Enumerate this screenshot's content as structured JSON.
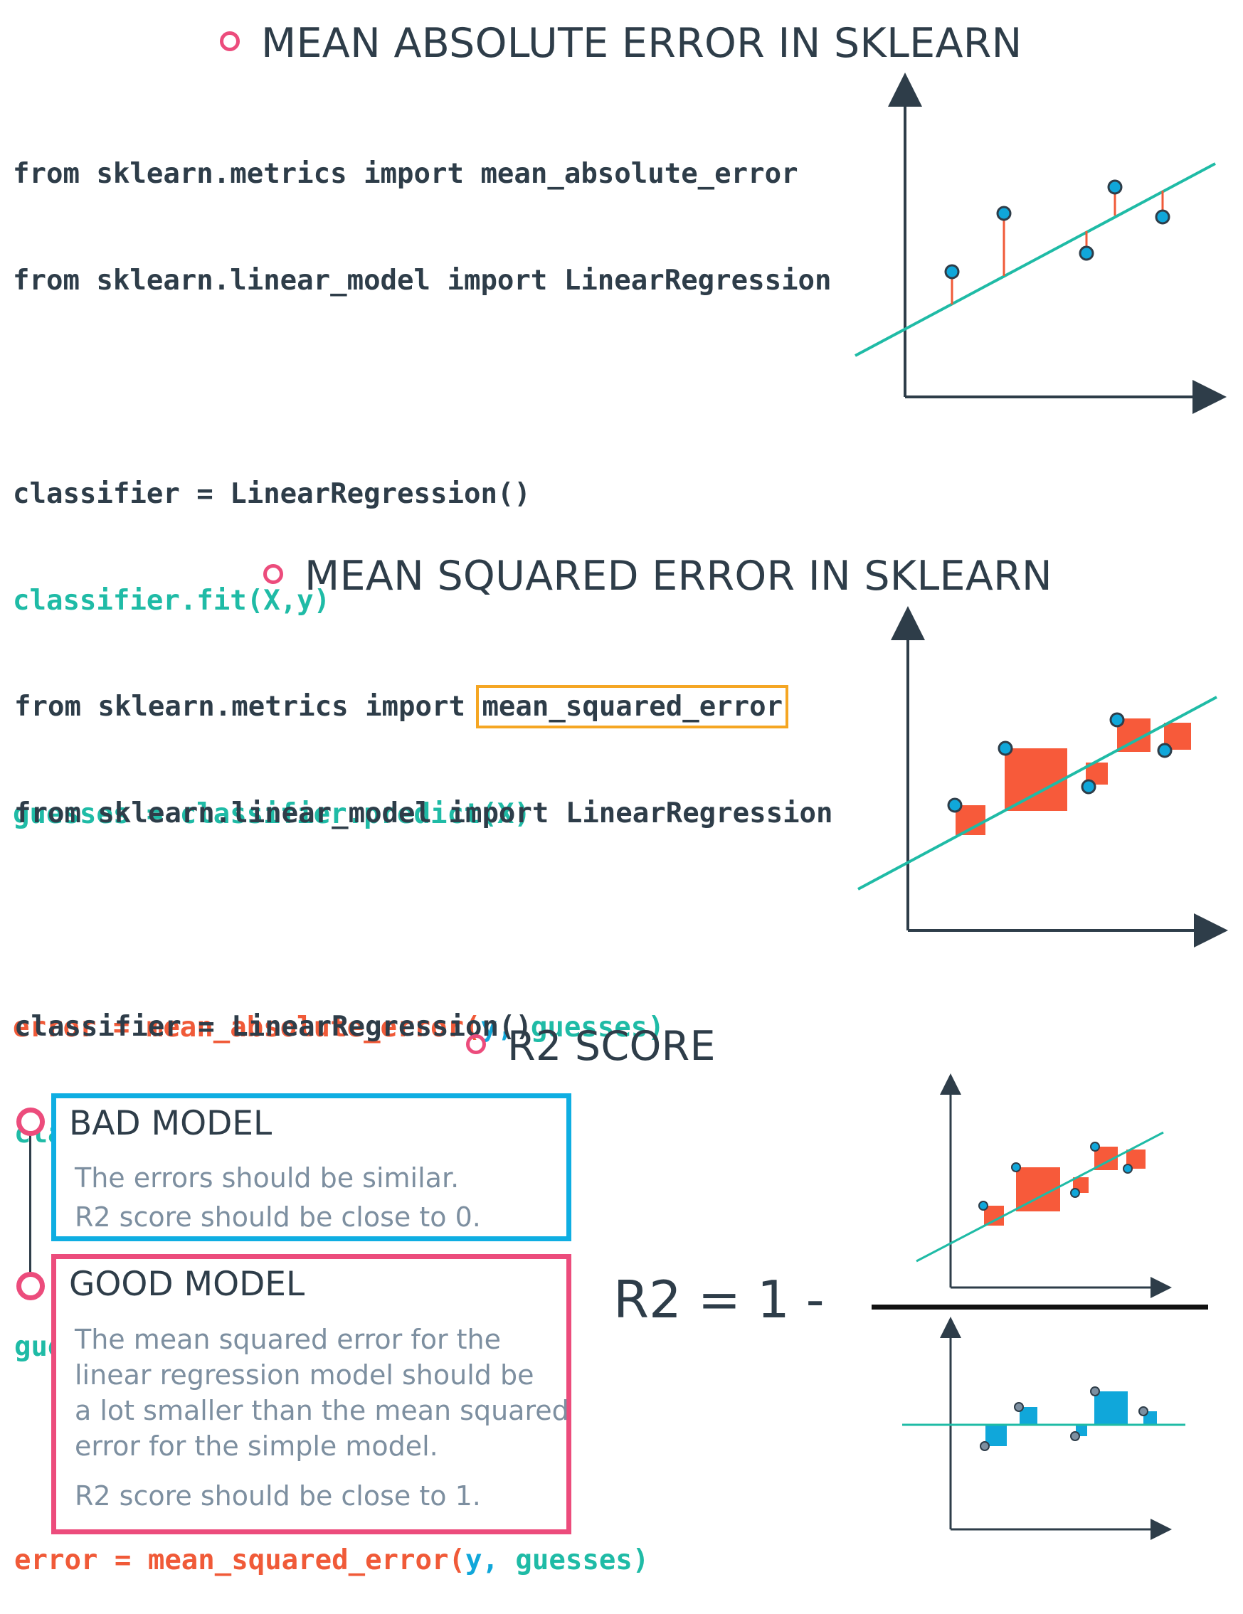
{
  "sections": {
    "mae": {
      "title": "MEAN ABSOLUTE ERROR IN SKLEARN",
      "code": {
        "l1": "from sklearn.metrics import mean_absolute_error",
        "l2": "from sklearn.linear_model import LinearRegression",
        "l3": "classifier = LinearRegression()",
        "l4": "classifier.fit(X,y)",
        "l5": "guesses = classifier.predict(X)",
        "l6a": "error = mean_absolute_error(",
        "l6b": "y,",
        "l6c": " guesses)"
      }
    },
    "mse": {
      "title": "MEAN SQUARED ERROR IN SKLEARN",
      "code": {
        "l1a": "from sklearn.metrics import ",
        "l1b": "mean_squared_error",
        "l2": "from sklearn.linear_model import LinearRegression",
        "l3": "classifier = LinearRegression()",
        "l4": "classifier.fit(X,y)",
        "l5": "guesses = classifier.predict(X)",
        "l6a": "error = mean_squared_error(",
        "l6b": "y,",
        "l6c": " guesses)"
      }
    },
    "r2": {
      "title": "R2 SCORE",
      "bad": {
        "title": "BAD MODEL",
        "line1": "The errors should be similar.",
        "line2": "R2 score should be close to 0."
      },
      "good": {
        "title": "GOOD MODEL",
        "line1": "The mean squared error for the",
        "line2": "linear regression model should be",
        "line3": "a lot smaller than the mean squared",
        "line4": "error for the simple model.",
        "line5": "R2 score should be close to 1."
      },
      "formula": "R2 = 1 -"
    }
  },
  "colors": {
    "dark": "#2e3d49",
    "teal": "#1fbba6",
    "blue": "#10a7da",
    "red": "#f05a38",
    "pink": "#ec4c7c",
    "orange": "#f5a623"
  }
}
